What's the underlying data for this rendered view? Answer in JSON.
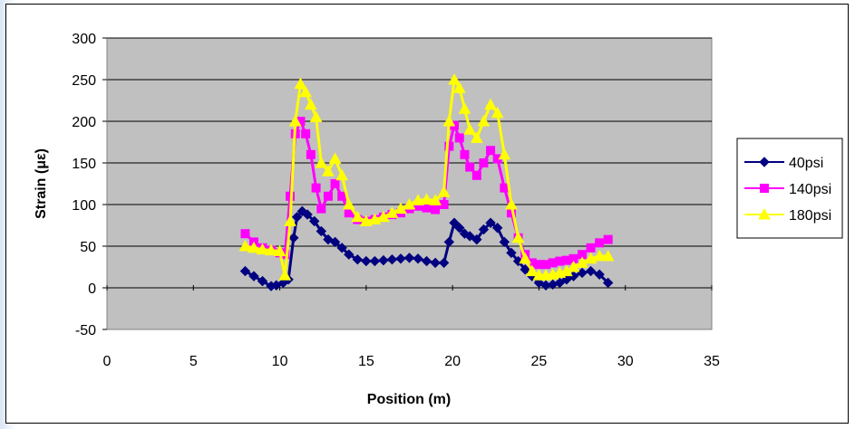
{
  "chart_data": {
    "type": "line",
    "title": "",
    "xlabel": "Position (m)",
    "ylabel": "Strain (με)",
    "xlim": [
      0,
      35
    ],
    "ylim": [
      -50,
      300
    ],
    "xticks": [
      0,
      5,
      10,
      15,
      20,
      25,
      30,
      35
    ],
    "yticks": [
      -50,
      0,
      50,
      100,
      150,
      200,
      250,
      300
    ],
    "grid": "horizontal",
    "plot_background": "#c0c0c0",
    "legend_position": "right",
    "series": [
      {
        "name": "40psi",
        "color": "#000080",
        "marker": "diamond",
        "x": [
          8,
          8.5,
          9,
          9.5,
          9.8,
          10.2,
          10.5,
          10.8,
          11,
          11.3,
          11.6,
          12,
          12.4,
          12.8,
          13.2,
          13.6,
          14,
          14.5,
          15,
          15.5,
          16,
          16.5,
          17,
          17.5,
          18,
          18.5,
          19,
          19.5,
          19.8,
          20.1,
          20.4,
          20.7,
          21,
          21.4,
          21.8,
          22.2,
          22.6,
          23,
          23.4,
          23.8,
          24.2,
          24.6,
          25,
          25.4,
          25.8,
          26.2,
          26.6,
          27,
          27.5,
          28,
          28.5,
          29
        ],
        "values": [
          20,
          14,
          8,
          2,
          3,
          6,
          10,
          60,
          85,
          92,
          88,
          80,
          68,
          58,
          55,
          48,
          40,
          34,
          32,
          32,
          33,
          34,
          35,
          36,
          35,
          32,
          30,
          30,
          55,
          78,
          72,
          65,
          62,
          58,
          70,
          78,
          72,
          55,
          42,
          32,
          22,
          14,
          6,
          3,
          4,
          6,
          10,
          14,
          18,
          20,
          16,
          6
        ]
      },
      {
        "name": "140psi",
        "color": "#ff00ff",
        "marker": "square",
        "x": [
          8,
          8.5,
          9,
          9.5,
          10,
          10.3,
          10.6,
          10.9,
          11.2,
          11.5,
          11.8,
          12.1,
          12.4,
          12.8,
          13.2,
          13.6,
          14,
          14.5,
          15,
          15.5,
          16,
          16.5,
          17,
          17.5,
          18,
          18.5,
          19,
          19.5,
          19.8,
          20.1,
          20.4,
          20.7,
          21,
          21.4,
          21.8,
          22.2,
          22.6,
          23,
          23.4,
          23.8,
          24.2,
          24.6,
          25,
          25.4,
          25.8,
          26.2,
          26.6,
          27,
          27.5,
          28,
          28.5,
          29
        ],
        "values": [
          65,
          55,
          48,
          45,
          42,
          40,
          110,
          185,
          200,
          185,
          160,
          120,
          95,
          110,
          125,
          110,
          90,
          82,
          80,
          82,
          85,
          88,
          90,
          95,
          98,
          96,
          94,
          100,
          170,
          195,
          180,
          160,
          145,
          135,
          150,
          165,
          155,
          120,
          90,
          60,
          40,
          30,
          28,
          28,
          30,
          32,
          33,
          35,
          40,
          48,
          54,
          58
        ]
      },
      {
        "name": "180psi",
        "color": "#ffff00",
        "marker": "triangle",
        "x": [
          8,
          8.5,
          9,
          9.5,
          10,
          10.3,
          10.6,
          10.9,
          11.2,
          11.5,
          11.8,
          12.1,
          12.4,
          12.8,
          13.2,
          13.6,
          14,
          14.5,
          15,
          15.5,
          16,
          16.5,
          17,
          17.5,
          18,
          18.5,
          19,
          19.5,
          19.8,
          20.1,
          20.4,
          20.7,
          21,
          21.4,
          21.8,
          22.2,
          22.6,
          23,
          23.4,
          23.8,
          24.2,
          24.6,
          25,
          25.4,
          25.8,
          26.2,
          26.6,
          27,
          27.5,
          28,
          28.5,
          29
        ],
        "values": [
          50,
          48,
          46,
          45,
          44,
          15,
          80,
          200,
          245,
          235,
          220,
          205,
          150,
          140,
          155,
          135,
          100,
          85,
          80,
          82,
          85,
          90,
          95,
          100,
          105,
          106,
          105,
          115,
          200,
          250,
          240,
          215,
          190,
          180,
          200,
          220,
          210,
          160,
          100,
          60,
          35,
          20,
          15,
          15,
          16,
          18,
          20,
          25,
          30,
          35,
          38,
          38
        ]
      }
    ]
  }
}
